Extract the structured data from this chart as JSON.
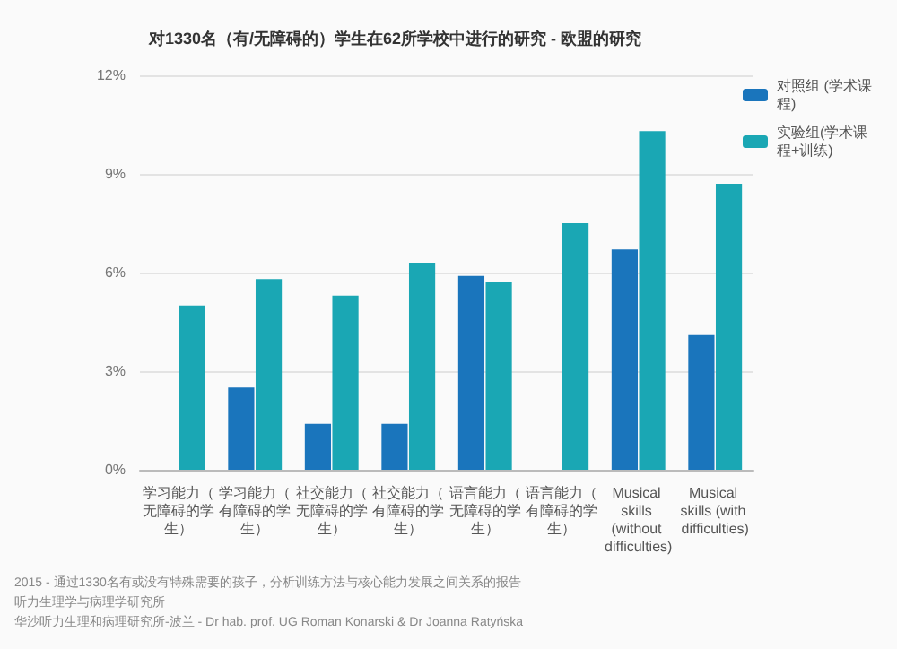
{
  "chart_data": {
    "type": "bar",
    "title": "对1330名（有/无障碍的）学生在62所学校中进行的研究 - 欧盟的研究",
    "categories": [
      "学习能力（无障碍的学生）",
      "学习能力（有障碍的学生）",
      "社交能力（无障碍的学生）",
      "社交能力（有障碍的学生）",
      "语言能力（无障碍的学生）",
      "语言能力（有障碍的学生）",
      "Musical skills (without difficulties)",
      "Musical skills (with difficulties)"
    ],
    "series": [
      {
        "name": "对照组 (学术课程)",
        "color": "#1a75bc",
        "values": [
          null,
          2.5,
          1.4,
          1.4,
          5.9,
          null,
          6.7,
          4.1
        ]
      },
      {
        "name": "实验组(学术课程+训练)",
        "color": "#1aa7b4",
        "values": [
          5.0,
          5.8,
          5.3,
          6.3,
          5.7,
          7.5,
          10.3,
          8.7
        ]
      }
    ],
    "ylim": [
      0,
      12
    ],
    "yticks": [
      {
        "value": 0,
        "label": "0%"
      },
      {
        "value": 3,
        "label": "3%"
      },
      {
        "value": 6,
        "label": "6%"
      },
      {
        "value": 9,
        "label": "9%"
      },
      {
        "value": 12,
        "label": "12%"
      }
    ],
    "grid": "y",
    "legend": "top right",
    "annotations": [
      "2015 - 通过1330名有或没有特殊需要的孩子，分析训练方法与核心能力发展之间关系的报告",
      "听力生理学与病理学研究所",
      "华沙听力生理和病理研究所-波兰 - Dr hab. prof. UG Roman Konarski & Dr Joanna Ratyńska"
    ]
  }
}
